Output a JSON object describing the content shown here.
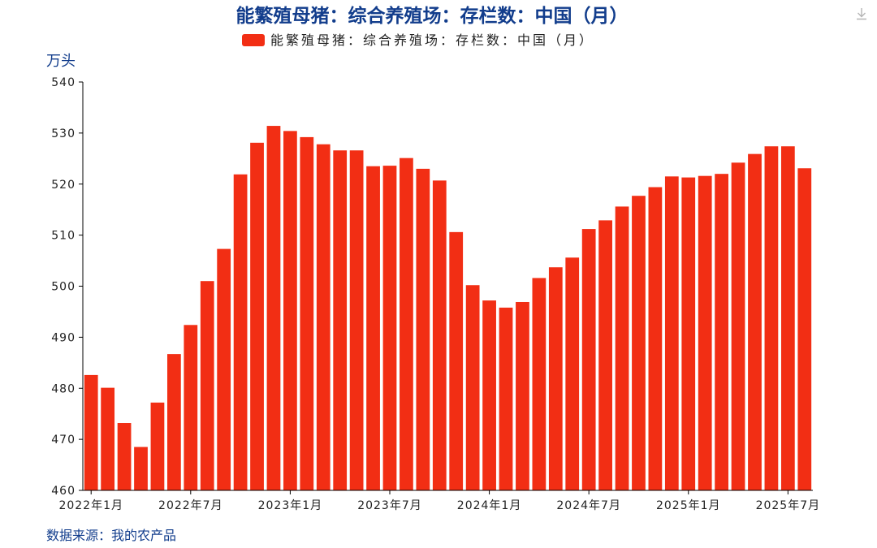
{
  "colors": {
    "bar": "#F22E14",
    "title": "#123D8C",
    "axis": "#000000",
    "source": "#123D8C"
  },
  "icons": {
    "download": "download-icon"
  },
  "chart_data": {
    "type": "bar",
    "title": "能繁殖母猪：综合养殖场：存栏数：中国（月）",
    "ylabel": "万头",
    "source": "数据来源：我的农产品",
    "legend": {
      "label": "能繁殖母猪：综合养殖场：存栏数：中国（月）",
      "placement": "top-center"
    },
    "ylim": [
      460,
      540
    ],
    "yticks": [
      460,
      470,
      480,
      490,
      500,
      510,
      520,
      530,
      540
    ],
    "grid": false,
    "x_tick_labels": [
      "2022年1月",
      "2022年7月",
      "2023年1月",
      "2023年7月",
      "2024年1月",
      "2024年7月",
      "2025年1月",
      "2025年7月"
    ],
    "categories": [
      "2022-01",
      "2022-02",
      "2022-03",
      "2022-04",
      "2022-05",
      "2022-06",
      "2022-07",
      "2022-08",
      "2022-09",
      "2022-10",
      "2022-11",
      "2022-12",
      "2023-01",
      "2023-02",
      "2023-03",
      "2023-04",
      "2023-05",
      "2023-06",
      "2023-07",
      "2023-08",
      "2023-09",
      "2023-10",
      "2023-11",
      "2023-12",
      "2024-01",
      "2024-02",
      "2024-03",
      "2024-04",
      "2024-05",
      "2024-06",
      "2024-07",
      "2024-08",
      "2024-09",
      "2024-10",
      "2024-11",
      "2024-12",
      "2025-01",
      "2025-02",
      "2025-03",
      "2025-04",
      "2025-05",
      "2025-06",
      "2025-07",
      "2025-08"
    ],
    "values": [
      482.6,
      480.1,
      473.2,
      468.5,
      477.2,
      486.7,
      492.4,
      501.0,
      507.3,
      521.9,
      528.1,
      531.4,
      530.4,
      529.2,
      527.8,
      526.6,
      526.6,
      523.5,
      523.6,
      525.1,
      523.0,
      520.7,
      510.6,
      500.2,
      497.2,
      495.8,
      496.9,
      501.6,
      503.7,
      505.6,
      511.2,
      512.9,
      515.6,
      517.7,
      519.4,
      521.5,
      521.3,
      521.6,
      522.0,
      524.2,
      525.9,
      527.4,
      527.4,
      523.1
    ]
  }
}
